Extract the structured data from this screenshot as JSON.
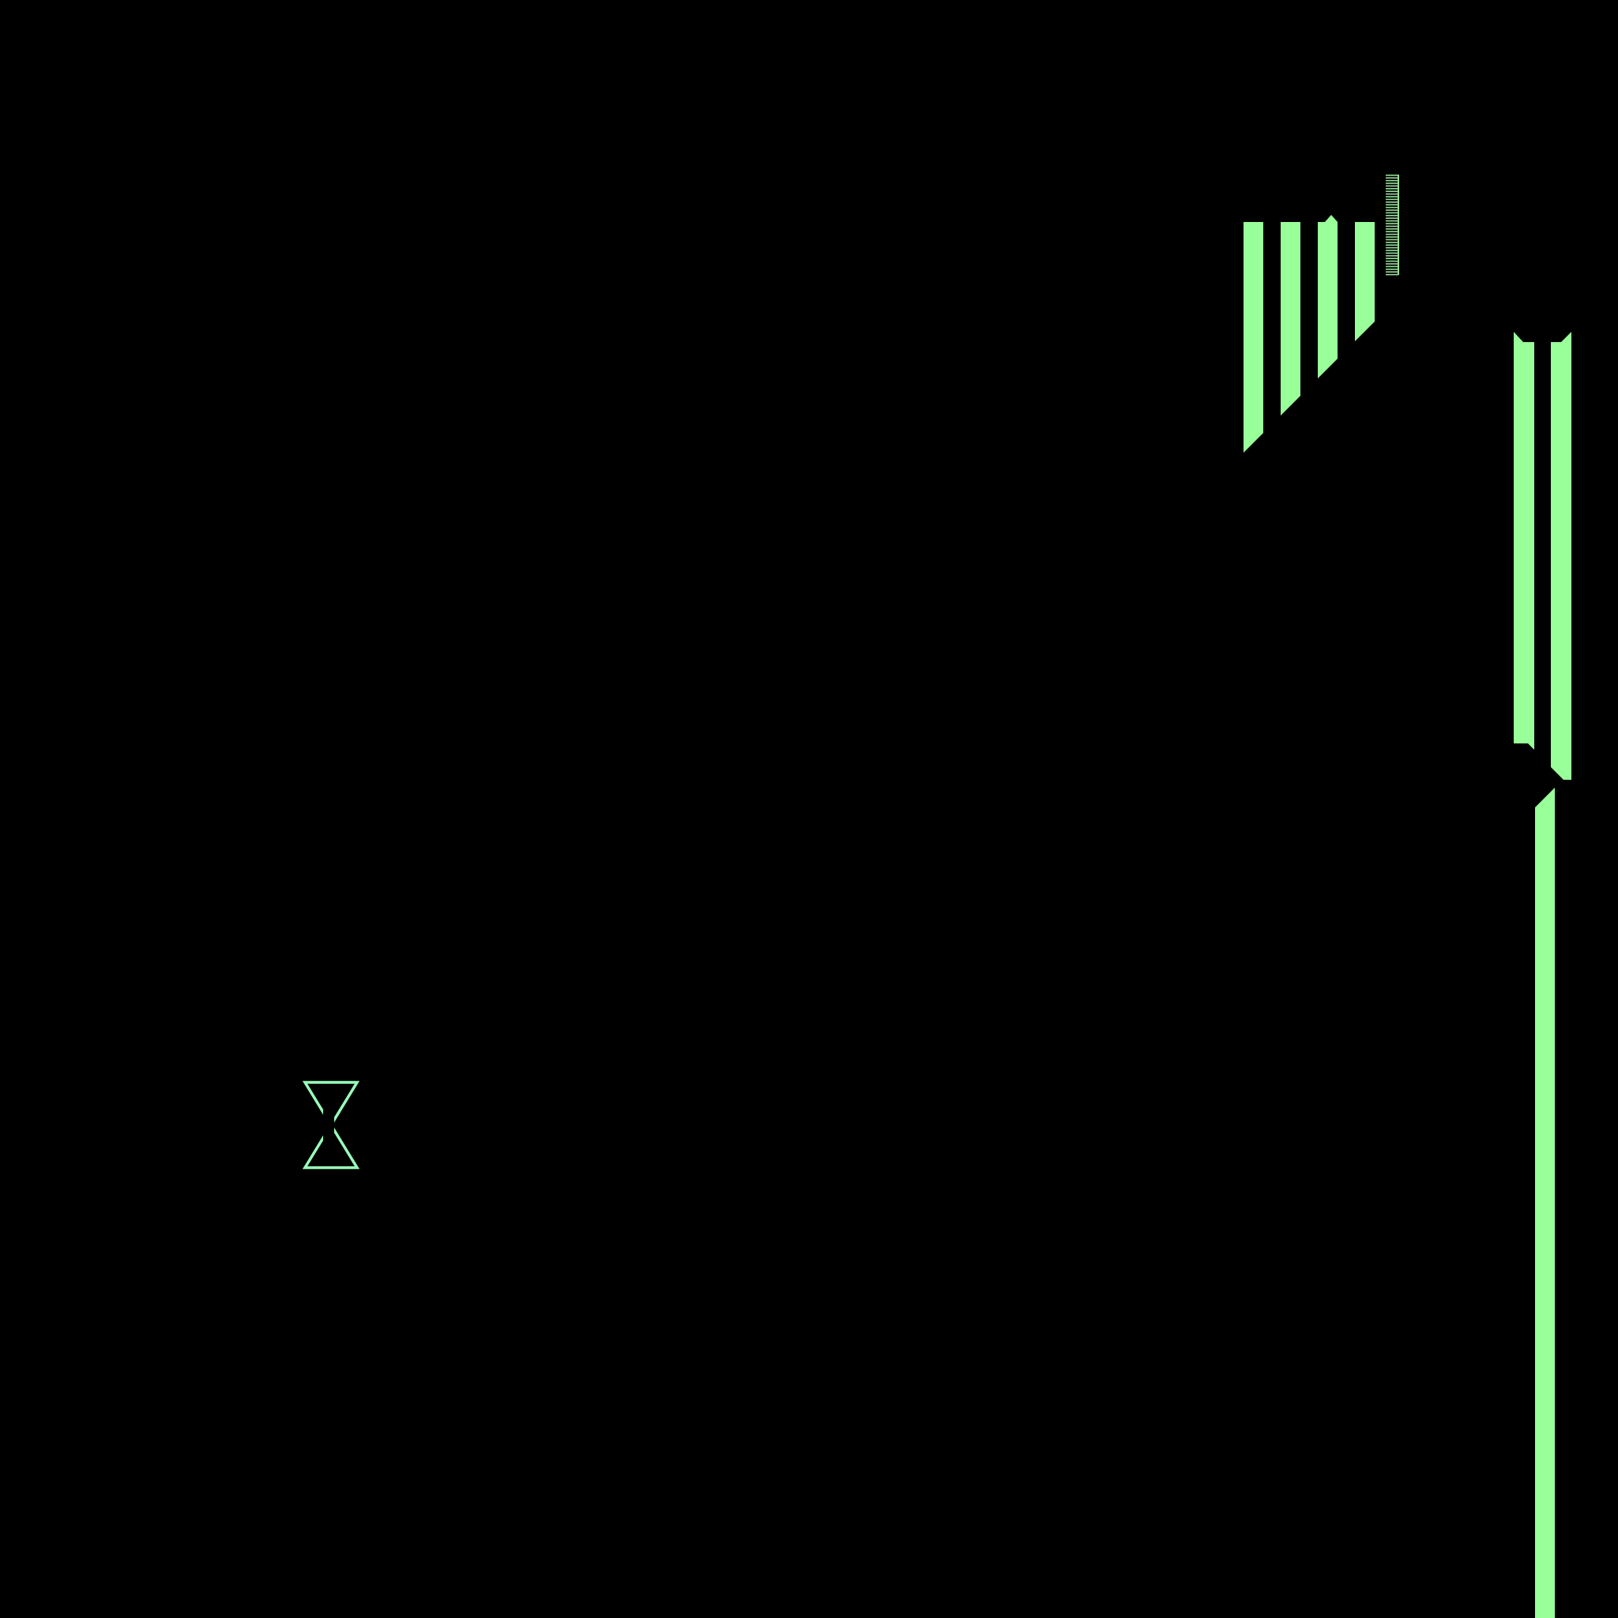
{
  "colors": {
    "background": "#000000",
    "bar_green": "#99ff99",
    "outline_mint": "#99ffbb",
    "tick_green": "#99dd99"
  },
  "icons": {
    "hourglass": "hourglass-icon",
    "tick_marks": "tick-mark-icon"
  }
}
